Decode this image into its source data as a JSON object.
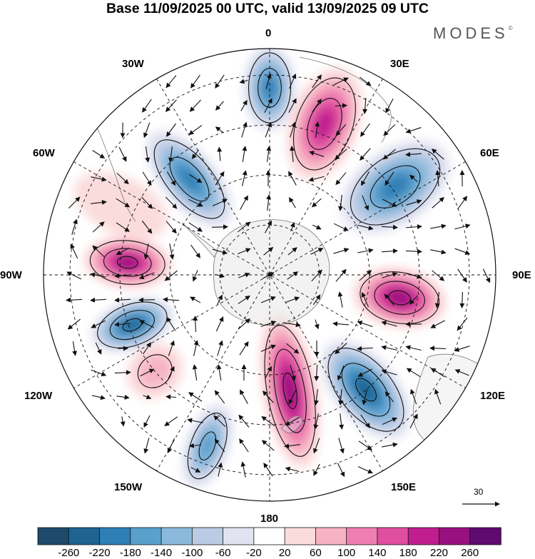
{
  "title": "Base 11/09/2025 00 UTC, valid 13/09/2025 09 UTC",
  "brand": "MODES",
  "brand_mark": "©",
  "longitude_labels": [
    "0",
    "30E",
    "60E",
    "90E",
    "120E",
    "150E",
    "180",
    "150W",
    "120W",
    "90W",
    "60W",
    "30W"
  ],
  "vector_scale": {
    "value": "30"
  },
  "colorbar": {
    "ticks": [
      "-260",
      "-220",
      "-180",
      "-140",
      "-100",
      "-60",
      "-20",
      "20",
      "60",
      "100",
      "140",
      "180",
      "220",
      "260"
    ],
    "colors": [
      "#1d4a6b",
      "#1f6391",
      "#2d7fb6",
      "#5aa0cd",
      "#8ab9dc",
      "#bccbe4",
      "#e2e2f0",
      "#ffffff",
      "#fbdcdc",
      "#f6b3c3",
      "#ee7fb0",
      "#e04ea0",
      "#c01e8e",
      "#98107f",
      "#5f0a6e"
    ]
  },
  "anomaly_centers": [
    {
      "sign": "negative",
      "lon": "0",
      "value": -200
    },
    {
      "sign": "positive",
      "lon": "20E",
      "value": 220
    },
    {
      "sign": "negative",
      "lon": "55E",
      "value": -200
    },
    {
      "sign": "positive",
      "lon": "100E",
      "value": 240
    },
    {
      "sign": "negative",
      "lon": "140E",
      "value": -260
    },
    {
      "sign": "positive",
      "lon": "170E",
      "value": 260
    },
    {
      "sign": "negative",
      "lon": "160W",
      "value": -160
    },
    {
      "sign": "positive",
      "lon": "130W",
      "value": 100
    },
    {
      "sign": "negative",
      "lon": "110W",
      "value": -260
    },
    {
      "sign": "positive",
      "lon": "85W",
      "value": 240
    },
    {
      "sign": "negative",
      "lon": "40W",
      "value": -200
    },
    {
      "sign": "positive",
      "lon": "65W",
      "value": 60
    }
  ]
}
